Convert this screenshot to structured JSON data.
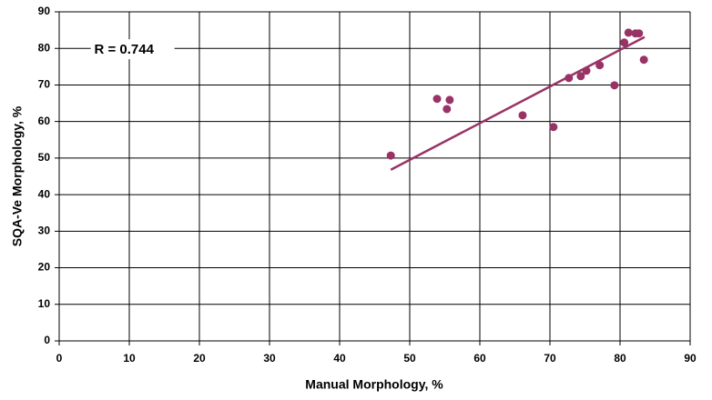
{
  "chart_data": {
    "type": "scatter",
    "x_label": "Manual Morphology, %",
    "y_label": "SQA-Ve Morphology, %",
    "annotation": "R = 0.744",
    "color": "#993366",
    "series": [
      {
        "x": [
          47.3,
          53.9,
          55.3,
          55.7,
          66.1,
          70.5,
          72.7,
          74.4,
          75.2,
          77.1,
          79.2,
          80.6,
          81.2,
          82.2,
          82.7,
          83.4
        ],
        "values": [
          50.7,
          66.2,
          63.4,
          65.9,
          61.7,
          58.5,
          71.9,
          72.4,
          73.9,
          75.4,
          69.9,
          81.6,
          84.3,
          84.1,
          84.1,
          76.9
        ]
      }
    ],
    "trendline": {
      "x": [
        47.3,
        83.5
      ],
      "values": [
        46.8,
        83.1
      ]
    },
    "xlim": [
      0,
      90
    ],
    "xticks": [
      0,
      10,
      20,
      30,
      40,
      50,
      60,
      70,
      80,
      90
    ],
    "ylim": [
      0,
      90
    ],
    "yticks": [
      0,
      10,
      20,
      30,
      40,
      50,
      60,
      70,
      80,
      90
    ],
    "grid": true
  }
}
